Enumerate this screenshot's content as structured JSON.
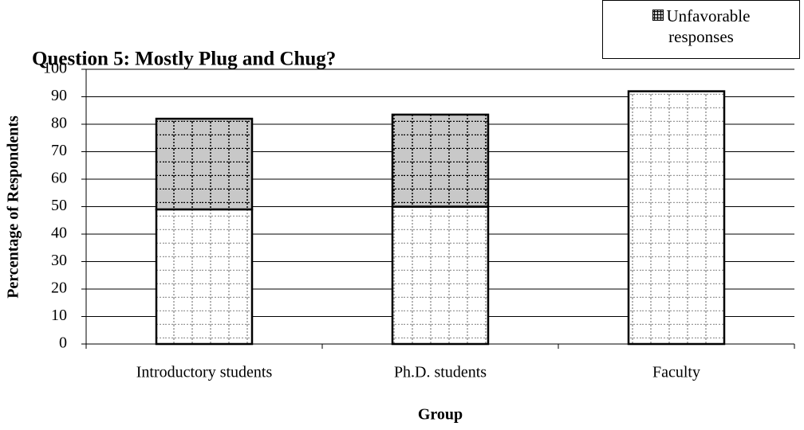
{
  "chart_data": {
    "type": "stacked_bar",
    "title": "Question 5: Mostly Plug and Chug?",
    "x_label": "Group",
    "y_label": "Percentage of Respondents",
    "categories": [
      "Introductory students",
      "Ph.D. students",
      "Faculty"
    ],
    "series": [
      {
        "color": "#ffffff",
        "values": [
          49,
          50,
          92
        ]
      },
      {
        "name": "Unfavorable responses",
        "color": "#c8c8c8",
        "values": [
          33,
          33.5,
          0
        ]
      }
    ],
    "ylim": [
      0,
      100
    ],
    "yticks": [
      0,
      10,
      20,
      30,
      40,
      50,
      60,
      70,
      80,
      90,
      100
    ],
    "grid": true,
    "legend": "top-right"
  }
}
